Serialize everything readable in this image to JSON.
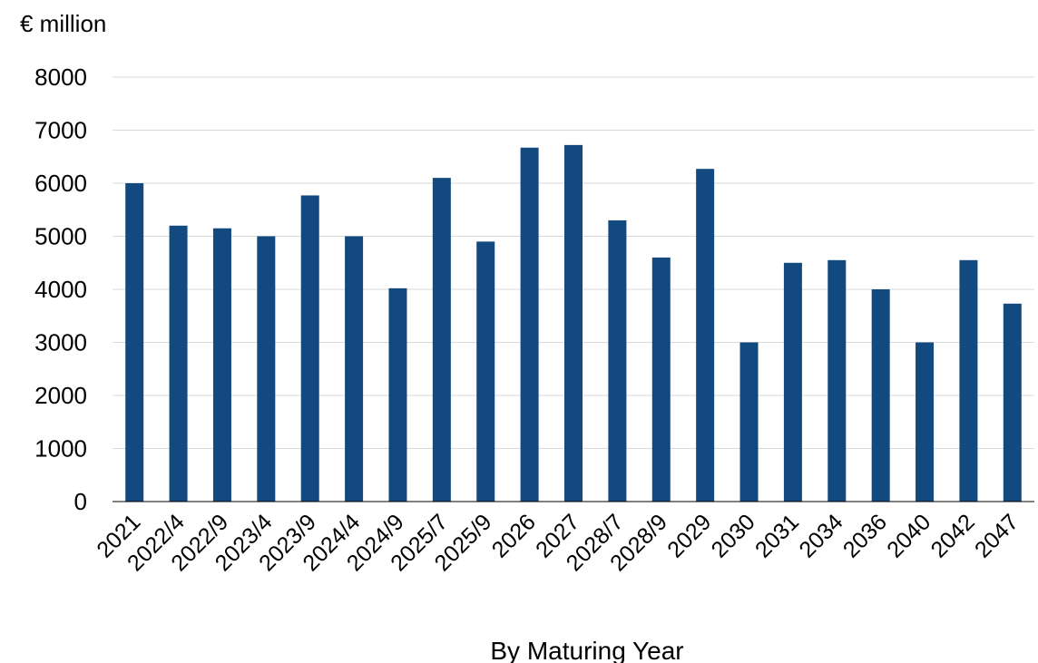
{
  "chart_data": {
    "type": "bar",
    "ylabel": "€ million",
    "xlabel": "By Maturing Year",
    "categories": [
      "2021",
      "2022/4",
      "2022/9",
      "2023/4",
      "2023/9",
      "2024/4",
      "2024/9",
      "2025/7",
      "2025/9",
      "2026",
      "2027",
      "2028/7",
      "2028/9",
      "2029",
      "2030",
      "2031",
      "2034",
      "2036",
      "2040",
      "2042",
      "2047"
    ],
    "values": [
      6000,
      5200,
      5150,
      5000,
      5770,
      5000,
      4020,
      6100,
      4900,
      6670,
      6720,
      5300,
      4600,
      6270,
      3000,
      4500,
      4550,
      4000,
      3000,
      4550,
      3730
    ],
    "ylim": [
      0,
      8000
    ],
    "yticks": [
      0,
      1000,
      2000,
      3000,
      4000,
      5000,
      6000,
      7000,
      8000
    ],
    "grid": true,
    "bar_color": "#124a80",
    "grid_color": "#d9d9d9",
    "axis_color": "#000000"
  }
}
